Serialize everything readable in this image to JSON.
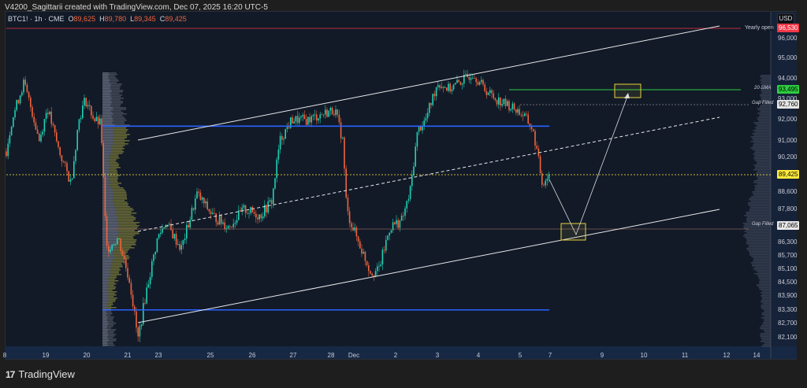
{
  "header": {
    "credit": "V4200_Sagittarii created with TradingView.com, Dec 07, 2025 16:20 UTC-5"
  },
  "legend": {
    "symbol": "BTC1! · 1h · CME",
    "o_label": "O",
    "o": "89,625",
    "h_label": "H",
    "h": "89,780",
    "l_label": "L",
    "l": "89,345",
    "c_label": "C",
    "c": "89,425"
  },
  "currency": "USD",
  "brand": "TradingView",
  "colors": {
    "up": "#22d1b2",
    "down": "#f0643c",
    "channel": "#e8e8e8",
    "level": "#2962ff",
    "sma": "#2ecc40",
    "yearly": "#f23645",
    "last": "#ffeb3b",
    "profile_value": "#8a8a3a",
    "profile_rest": "#9aa3b5"
  },
  "chart_data": {
    "type": "candlestick",
    "symbol": "BTC1!",
    "interval": "1h",
    "yscale": "log",
    "ylim": [
      81800,
      96900
    ],
    "y_ticks": [
      96000,
      95000,
      94000,
      93000,
      92000,
      91000,
      90200,
      88600,
      87800,
      86300,
      85700,
      85100,
      84500,
      83900,
      83300,
      82700,
      82100
    ],
    "y_tick_labels": [
      "96,000",
      "95,000",
      "94,000",
      "93,000",
      "92,000",
      "91,000",
      "90,200",
      "88,600",
      "87,800",
      "86,300",
      "85,700",
      "85,100",
      "84,500",
      "83,900",
      "83,300",
      "82,700",
      "82,100"
    ],
    "x_ticks": [
      "8",
      "19",
      "20",
      "21",
      "23",
      "25",
      "26",
      "27",
      "28",
      "Dec",
      "2",
      "3",
      "4",
      "5",
      "7",
      "9",
      "10",
      "11",
      "12",
      "14"
    ],
    "approx_close_path": [
      [
        "Nov 18",
        90500
      ],
      [
        "Nov 18",
        92000
      ],
      [
        "Nov 18",
        93800
      ],
      [
        "Nov 19",
        92500
      ],
      [
        "Nov 19",
        91000
      ],
      [
        "Nov 19",
        92600
      ],
      [
        "Nov 19",
        90500
      ],
      [
        "Nov 20",
        89000
      ],
      [
        "Nov 20",
        92000
      ],
      [
        "Nov 20",
        93000
      ],
      [
        "Nov 20",
        92000
      ],
      [
        "Nov 20",
        91800
      ],
      [
        "Nov 20",
        86000
      ],
      [
        "Nov 21",
        86500
      ],
      [
        "Nov 21",
        84500
      ],
      [
        "Nov 21",
        82000
      ],
      [
        "Nov 21",
        84000
      ],
      [
        "Nov 23",
        86500
      ],
      [
        "Nov 23",
        87200
      ],
      [
        "Nov 24",
        86000
      ],
      [
        "Nov 24",
        88500
      ],
      [
        "Nov 25",
        87500
      ],
      [
        "Nov 25",
        87000
      ],
      [
        "Nov 25",
        87800
      ],
      [
        "Nov 26",
        87500
      ],
      [
        "Nov 26",
        88200
      ],
      [
        "Nov 26",
        91000
      ],
      [
        "Nov 27",
        92000
      ],
      [
        "Nov 27",
        92000
      ],
      [
        "Nov 28",
        92300
      ],
      [
        "Nov 28",
        92500
      ],
      [
        "Nov 28",
        91000
      ],
      [
        "Nov 28",
        87700
      ],
      [
        "Dec 1",
        86300
      ],
      [
        "Dec 1",
        85000
      ],
      [
        "Dec 1",
        85000
      ],
      [
        "Dec 2",
        87000
      ],
      [
        "Dec 2",
        87300
      ],
      [
        "Dec 2",
        88500
      ],
      [
        "Dec 2",
        91500
      ],
      [
        "Dec 3",
        92000
      ],
      [
        "Dec 3",
        93800
      ],
      [
        "Dec 3",
        93500
      ],
      [
        "Dec 4",
        94000
      ],
      [
        "Dec 4",
        94300
      ],
      [
        "Dec 4",
        93500
      ],
      [
        "Dec 4",
        93000
      ],
      [
        "Dec 5",
        92700
      ],
      [
        "Dec 5",
        92500
      ],
      [
        "Dec 5",
        92200
      ],
      [
        "Dec 5",
        91600
      ],
      [
        "Dec 5",
        90800
      ],
      [
        "Dec 5",
        89000
      ],
      [
        "Dec 5",
        89425
      ]
    ],
    "price_tags": [
      {
        "label": "Yearly open",
        "value": "96,530",
        "color": "#f23645",
        "text": "#ffffff"
      },
      {
        "label": "20 SMA",
        "value": "93,495",
        "color": "#2ecc40",
        "text": "#000000"
      },
      {
        "label": "Gap Filled",
        "value": "92,760",
        "color": "#e6e6e6",
        "text": "#000000"
      },
      {
        "label": "",
        "value": "89,425",
        "color": "#ffeb3b",
        "text": "#000000"
      },
      {
        "label": "Gap Filled",
        "value": "87,065",
        "color": "#e6e6e6",
        "text": "#000000"
      }
    ],
    "levels": [
      91700,
      83300
    ],
    "projection": [
      "89,425",
      "~86,900",
      "~93,500"
    ]
  }
}
